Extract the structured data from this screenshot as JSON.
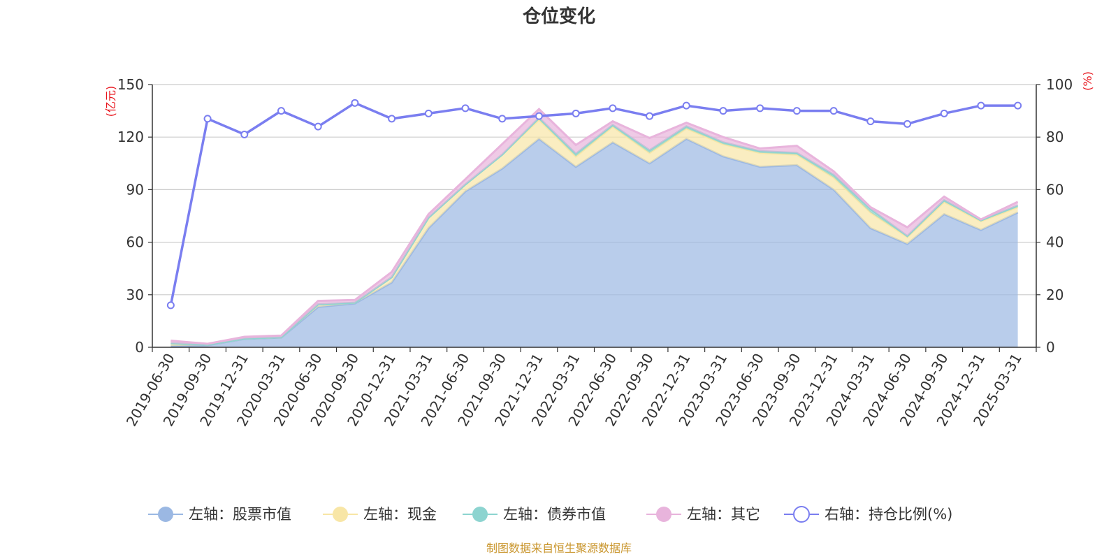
{
  "chart_data": {
    "type": "area",
    "title": "仓位变化",
    "left_axis_unit": "(亿元)",
    "right_axis_unit": "(%)",
    "left_ylim": [
      0,
      150
    ],
    "left_yticks": [
      0,
      30,
      60,
      90,
      120,
      150
    ],
    "right_ylim": [
      0,
      100
    ],
    "right_yticks": [
      0,
      20,
      40,
      60,
      80,
      100
    ],
    "grid": true,
    "legend_position": "bottom",
    "categories": [
      "2019-06-30",
      "2019-09-30",
      "2019-12-31",
      "2020-03-31",
      "2020-06-30",
      "2020-09-30",
      "2020-12-31",
      "2021-03-31",
      "2021-06-30",
      "2021-09-30",
      "2021-12-31",
      "2022-03-31",
      "2022-06-30",
      "2022-09-30",
      "2022-12-31",
      "2023-03-31",
      "2023-06-30",
      "2023-09-30",
      "2023-12-31",
      "2024-03-31",
      "2024-06-30",
      "2024-09-30",
      "2024-12-31",
      "2025-03-31"
    ],
    "series": [
      {
        "name": "左轴：股票市值",
        "axis": "left",
        "kind": "stacked-area",
        "color": "#9bb8e3",
        "values": [
          0.8,
          1.2,
          4.8,
          5.5,
          23,
          25,
          37,
          68,
          89,
          102,
          119,
          103,
          117,
          105,
          119,
          109,
          103,
          104,
          90,
          68,
          59,
          76,
          67,
          77
        ]
      },
      {
        "name": "左轴：现金",
        "axis": "left",
        "kind": "stacked-area",
        "color": "#f8e6a6",
        "values": [
          1.5,
          0.3,
          0.2,
          0.2,
          1.5,
          0.5,
          3,
          6,
          4,
          8,
          11,
          6,
          9,
          6,
          6,
          7,
          8,
          6,
          7,
          9,
          4,
          7,
          5,
          3
        ]
      },
      {
        "name": "左轴：债券市值",
        "axis": "left",
        "kind": "stacked-area",
        "color": "#8dd4d0",
        "values": [
          0,
          0,
          0,
          0,
          0,
          0,
          0,
          0,
          0,
          0,
          1,
          1.5,
          1,
          1.5,
          1.2,
          1,
          1,
          1,
          1.5,
          2,
          0.5,
          1,
          0.5,
          1
        ]
      },
      {
        "name": "左轴：其它",
        "axis": "left",
        "kind": "stacked-area",
        "color": "#e8b4dc",
        "values": [
          1.5,
          0.5,
          1,
          1,
          2,
          1.5,
          3,
          2,
          3,
          6,
          5,
          5,
          2,
          7,
          2,
          3,
          1.5,
          4,
          2,
          1,
          5,
          2,
          0.5,
          2
        ]
      },
      {
        "name": "右轴：持仓比例(%)",
        "axis": "right",
        "kind": "line",
        "color": "#7a7ef0",
        "values": [
          16,
          87,
          81,
          90,
          84,
          93,
          87,
          89,
          91,
          87,
          88,
          89,
          91,
          88,
          92,
          90,
          91,
          90,
          90,
          86,
          85,
          89,
          92,
          92
        ]
      }
    ]
  },
  "footer": {
    "source": "制图数据来自恒生聚源数据库"
  }
}
